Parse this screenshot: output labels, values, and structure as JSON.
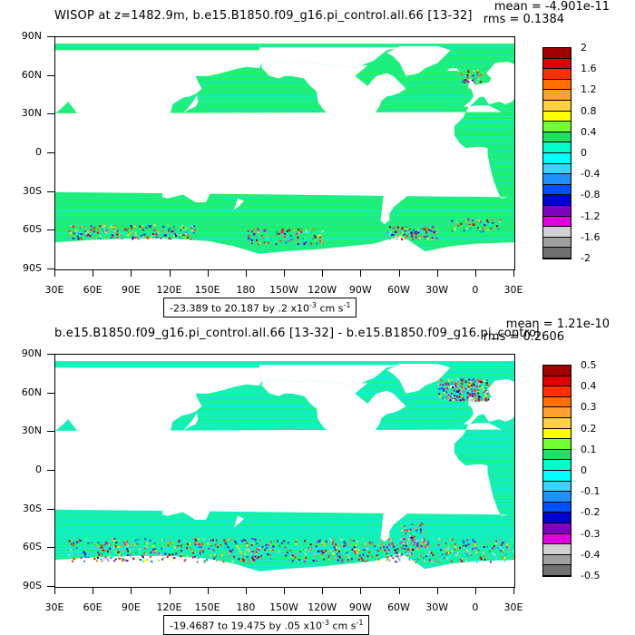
{
  "panels": [
    {
      "id": "top",
      "title": "WISOP at z=1482.9m, b.e15.B1850.f09_g16.pi_control.all.66 [13-32]",
      "mean": "mean = -4.901e-11",
      "rms": "rms = 0.1384",
      "range_text": "-23.389 to 20.187 by .2 x10",
      "range_exp": "-3",
      "range_unit": " cm s",
      "range_unit_exp": "-1",
      "colorbar_labels": [
        "2",
        "1.6",
        "1.2",
        "0.8",
        "0.4",
        "0",
        "-0.4",
        "-0.8",
        "-1.2",
        "-1.6",
        "-2"
      ],
      "colorbar_colors": [
        "#a00000",
        "#e00000",
        "#ff3000",
        "#ff7000",
        "#ffa030",
        "#ffd040",
        "#ffff00",
        "#70ff30",
        "#20e060",
        "#00ffc8",
        "#00ffff",
        "#40d0ff",
        "#2090ff",
        "#0050ff",
        "#0000d0",
        "#8000c0",
        "#e000e0",
        "#d0d0d0",
        "#a0a0a0",
        "#707070"
      ]
    },
    {
      "id": "bottom",
      "title": "b.e15.B1850.f09_g16.pi_control.all.66 [13-32] - b.e15.B1850.f09_g16.pi_control",
      "mean": "mean = 1.21e-10",
      "rms": "rms = 0.2606",
      "range_text": "-19.4687 to 19.475 by .05 x10",
      "range_exp": "-3",
      "range_unit": " cm s",
      "range_unit_exp": "-1",
      "colorbar_labels": [
        "0.5",
        "0.4",
        "0.3",
        "0.2",
        "0.1",
        "0",
        "-0.1",
        "-0.2",
        "-0.3",
        "-0.4",
        "-0.5"
      ],
      "colorbar_colors": [
        "#a00000",
        "#e00000",
        "#ff3000",
        "#ff7000",
        "#ffa030",
        "#ffd040",
        "#ffff00",
        "#70ff30",
        "#20e060",
        "#00ffc8",
        "#00ffff",
        "#40d0ff",
        "#2090ff",
        "#0050ff",
        "#0000d0",
        "#8000c0",
        "#e000e0",
        "#d0d0d0",
        "#a0a0a0",
        "#707070"
      ]
    }
  ],
  "lat_labels": [
    "90N",
    "60N",
    "30N",
    "0",
    "30S",
    "60S",
    "90S"
  ],
  "lon_labels": [
    "30E",
    "60E",
    "90E",
    "120E",
    "150E",
    "180",
    "150W",
    "120W",
    "90W",
    "60W",
    "30W",
    "0",
    "30E"
  ],
  "colors": {
    "ocean_green": "#22ee66",
    "ocean_cyan": "#10f0d0",
    "land": "#ffffff"
  }
}
